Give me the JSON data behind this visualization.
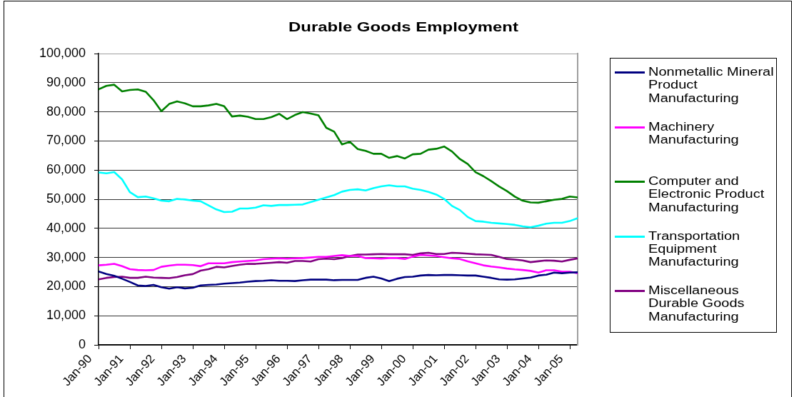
{
  "chart_data": {
    "type": "line",
    "title": "Durable Goods Employment",
    "x": [
      "1990-01",
      "1990-04",
      "1990-07",
      "1990-10",
      "1991-01",
      "1991-04",
      "1991-07",
      "1991-10",
      "1992-01",
      "1992-04",
      "1992-07",
      "1992-10",
      "1993-01",
      "1993-04",
      "1993-07",
      "1993-10",
      "1994-01",
      "1994-04",
      "1994-07",
      "1994-10",
      "1995-01",
      "1995-04",
      "1995-07",
      "1995-10",
      "1996-01",
      "1996-04",
      "1996-07",
      "1996-10",
      "1997-01",
      "1997-04",
      "1997-07",
      "1997-10",
      "1998-01",
      "1998-04",
      "1998-07",
      "1998-10",
      "1999-01",
      "1999-04",
      "1999-07",
      "1999-10",
      "2000-01",
      "2000-04",
      "2000-07",
      "2000-10",
      "2001-01",
      "2001-04",
      "2001-07",
      "2001-10",
      "2002-01",
      "2002-04",
      "2002-07",
      "2002-10",
      "2003-01",
      "2003-04",
      "2003-07",
      "2003-10",
      "2004-01",
      "2004-04",
      "2004-07",
      "2004-10",
      "2005-01",
      "2005-04"
    ],
    "xlim": [
      "1990-01",
      "2005-04"
    ],
    "xticks": [
      {
        "value": "1990-01",
        "label": "Jan-90"
      },
      {
        "value": "1991-01",
        "label": "Jan-91"
      },
      {
        "value": "1992-01",
        "label": "Jan-92"
      },
      {
        "value": "1993-01",
        "label": "Jan-93"
      },
      {
        "value": "1994-01",
        "label": "Jan-94"
      },
      {
        "value": "1995-01",
        "label": "Jan-95"
      },
      {
        "value": "1996-01",
        "label": "Jan-96"
      },
      {
        "value": "1997-01",
        "label": "Jan-97"
      },
      {
        "value": "1998-01",
        "label": "Jan-98"
      },
      {
        "value": "1999-01",
        "label": "Jan-99"
      },
      {
        "value": "2000-01",
        "label": "Jan-00"
      },
      {
        "value": "2001-01",
        "label": "Jan-01"
      },
      {
        "value": "2002-01",
        "label": "Jan-02"
      },
      {
        "value": "2003-01",
        "label": "Jan-03"
      },
      {
        "value": "2004-01",
        "label": "Jan-04"
      },
      {
        "value": "2005-01",
        "label": "Jan-05"
      }
    ],
    "ylim": [
      0,
      100000
    ],
    "yticks": [
      0,
      {
        "value": 10000,
        "label": "10,000"
      },
      {
        "value": 20000,
        "label": "20,000"
      },
      {
        "value": 30000,
        "label": "30,000"
      },
      {
        "value": 40000,
        "label": "40,000"
      },
      {
        "value": 50000,
        "label": "50,000"
      },
      {
        "value": 60000,
        "label": "60,000"
      },
      {
        "value": 70000,
        "label": "70,000"
      },
      {
        "value": 80000,
        "label": "80,000"
      },
      {
        "value": 90000,
        "label": "90,000"
      },
      {
        "value": 100000,
        "label": "100,000"
      }
    ],
    "grid": "y",
    "legend": "right",
    "marker": "none",
    "series": [
      {
        "name": "Nonmetallic Mineral Product Manufacturing",
        "color": "#000080",
        "values": [
          25200,
          24300,
          23700,
          22700,
          21600,
          20400,
          20200,
          20600,
          19800,
          19300,
          19800,
          19400,
          19600,
          20400,
          20600,
          20700,
          21000,
          21200,
          21400,
          21700,
          21900,
          22000,
          22200,
          22000,
          22000,
          21900,
          22200,
          22400,
          22400,
          22400,
          22200,
          22300,
          22300,
          22300,
          23000,
          23400,
          22800,
          21900,
          22700,
          23300,
          23400,
          23800,
          24000,
          23900,
          24000,
          24000,
          23900,
          23800,
          23800,
          23400,
          23000,
          22500,
          22400,
          22500,
          22800,
          23100,
          23800,
          24100,
          24800,
          24600,
          24800,
          24900
        ]
      },
      {
        "name": "Machinery Manufacturing",
        "color": "#ff00ff",
        "values": [
          27300,
          27500,
          27800,
          27000,
          26000,
          25700,
          25600,
          25700,
          26800,
          27200,
          27500,
          27500,
          27400,
          27000,
          28000,
          28000,
          28000,
          28400,
          28600,
          28800,
          29000,
          29400,
          29600,
          29700,
          29600,
          29700,
          29800,
          30000,
          30200,
          30200,
          30500,
          30800,
          30500,
          30500,
          29800,
          29700,
          29600,
          29800,
          29800,
          29500,
          30300,
          30900,
          30700,
          30500,
          30100,
          29700,
          29500,
          28700,
          28000,
          27300,
          26900,
          26600,
          26200,
          25900,
          25700,
          25400,
          24800,
          25600,
          25600,
          25100,
          25100,
          24600
        ]
      },
      {
        "name": "Computer and Electronic Product Manufacturing",
        "color": "#008000",
        "values": [
          87700,
          88900,
          89300,
          87000,
          87500,
          87700,
          86900,
          84000,
          80200,
          82700,
          83600,
          82900,
          81900,
          81900,
          82200,
          82700,
          81900,
          78400,
          78700,
          78300,
          77500,
          77500,
          78200,
          79300,
          77500,
          78900,
          79900,
          79400,
          78800,
          74500,
          73200,
          68800,
          69700,
          67200,
          66600,
          65600,
          65600,
          64200,
          64800,
          64000,
          65400,
          65600,
          67000,
          67300,
          68100,
          66400,
          63800,
          62100,
          59300,
          57900,
          56200,
          54400,
          52800,
          50900,
          49500,
          48900,
          48800,
          49300,
          49800,
          50100,
          50900,
          50600
        ]
      },
      {
        "name": "Transportation Equipment Manufacturing",
        "color": "#00ffff",
        "values": [
          59200,
          58900,
          59300,
          56800,
          52400,
          50700,
          50900,
          50300,
          49500,
          49300,
          50100,
          49900,
          49500,
          49300,
          47900,
          46500,
          45600,
          45700,
          46800,
          46800,
          47100,
          47900,
          47700,
          48000,
          48000,
          48100,
          48200,
          49000,
          49800,
          50600,
          51400,
          52600,
          53200,
          53400,
          53000,
          53800,
          54400,
          54800,
          54400,
          54400,
          53600,
          53200,
          52500,
          51600,
          50100,
          47700,
          46300,
          43900,
          42500,
          42300,
          41900,
          41700,
          41500,
          41200,
          40700,
          40400,
          40900,
          41600,
          41900,
          41900,
          42500,
          43500
        ]
      },
      {
        "name": "Miscellaneous Durable Goods Manufacturing",
        "color": "#800080",
        "values": [
          22500,
          23000,
          23300,
          23400,
          23000,
          23000,
          23400,
          23100,
          23000,
          22900,
          23300,
          23900,
          24300,
          25500,
          26000,
          26800,
          26600,
          27100,
          27500,
          27800,
          27800,
          28000,
          28200,
          28400,
          28200,
          28800,
          28800,
          28600,
          29400,
          29600,
          29400,
          29800,
          30500,
          31000,
          31000,
          31100,
          31200,
          31100,
          31100,
          31100,
          30900,
          31400,
          31600,
          31200,
          31200,
          31600,
          31500,
          31300,
          31100,
          31000,
          30900,
          30200,
          29500,
          29300,
          29000,
          28400,
          28700,
          29000,
          28900,
          28600,
          29200,
          29700
        ]
      }
    ]
  }
}
